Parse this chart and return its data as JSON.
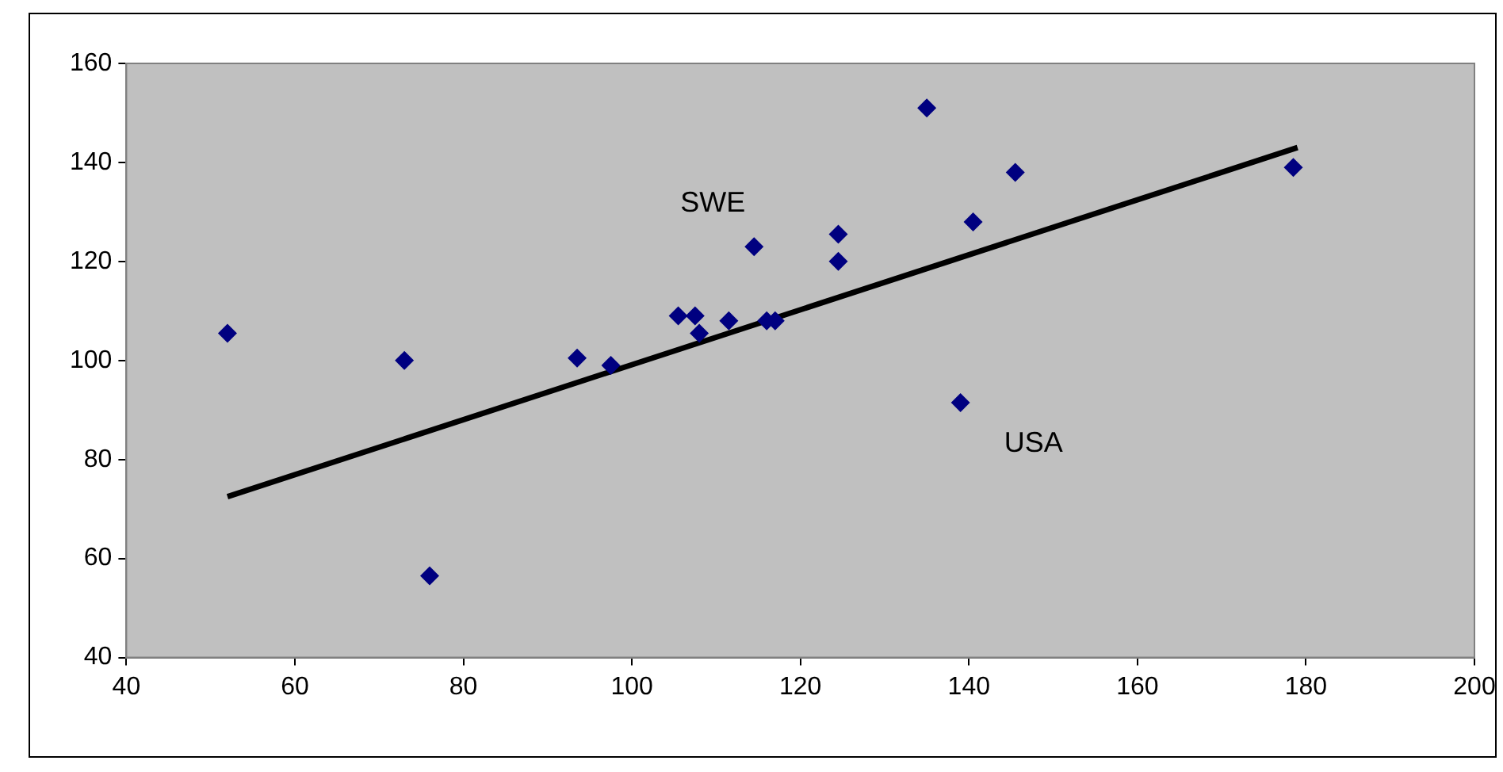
{
  "chart_data": {
    "type": "scatter",
    "x": [
      52,
      73,
      76,
      93.5,
      97.5,
      105.5,
      107.5,
      108,
      111.5,
      114.5,
      116,
      117,
      124.5,
      124.5,
      135,
      139,
      140.5,
      145.5,
      178.5
    ],
    "series": [
      {
        "color": "#000080",
        "marker": "diamond",
        "values": [
          105.5,
          100,
          56.5,
          100.5,
          99,
          109,
          109,
          105.5,
          108,
          123,
          108,
          108,
          125.5,
          120,
          151,
          91.5,
          128,
          138,
          139
        ]
      },
      {
        "type": "line",
        "color": "#000000",
        "marker": "none",
        "x": [
          52,
          179
        ],
        "values": [
          72.5,
          143
        ]
      }
    ],
    "xlim": [
      40,
      200
    ],
    "xticks": [
      40,
      60,
      80,
      100,
      120,
      140,
      160,
      180,
      200
    ],
    "ylim": [
      40,
      160
    ],
    "yticks": [
      40,
      60,
      80,
      100,
      120,
      140,
      160
    ],
    "grid": false,
    "legend": false,
    "annotations": [
      {
        "text": "SWE",
        "x": 114.5,
        "y": 123
      },
      {
        "text": "USA",
        "x": 139,
        "y": 91.5
      }
    ]
  }
}
